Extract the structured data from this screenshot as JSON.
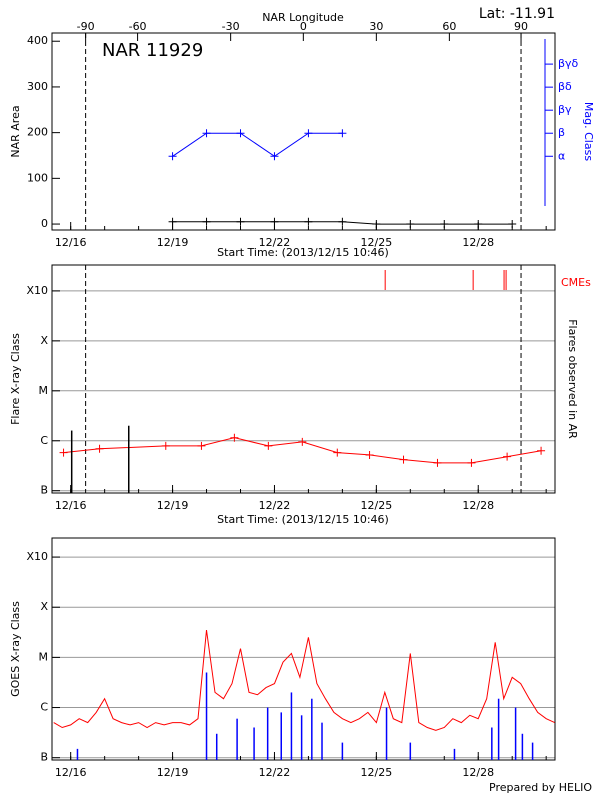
{
  "chart_data": [
    {
      "type": "line",
      "annotation": "NAR 11929",
      "corner_text": "Lat: -11.91",
      "top_xlabel": "NAR Longitude",
      "xlabel": "Start Time: (2013/12/15 10:46)",
      "ylabel": "NAR Area",
      "y2label": "Mag. Class",
      "y2color": "#0000ff",
      "xlim": [
        0.45,
        15.26
      ],
      "xticks": [
        {
          "value": 1,
          "label": "12/16"
        },
        {
          "value": 4,
          "label": "12/19"
        },
        {
          "value": 7,
          "label": "12/22"
        },
        {
          "value": 10,
          "label": "12/25"
        },
        {
          "value": 13,
          "label": "12/28"
        }
      ],
      "top_xticks": [
        {
          "value": 1.44,
          "label": "-90"
        },
        {
          "value": 2.97,
          "label": "-60"
        },
        {
          "value": 5.71,
          "label": "-30"
        },
        {
          "value": 7.85,
          "label": "0"
        },
        {
          "value": 10.0,
          "label": "30"
        },
        {
          "value": 12.15,
          "label": "60"
        },
        {
          "value": 14.26,
          "label": "90"
        }
      ],
      "ylim": [
        -13,
        418
      ],
      "yticks": [
        0,
        100,
        200,
        300,
        400
      ],
      "y2lim": [
        -2.2,
        6.35
      ],
      "y2ticks": [
        {
          "value": 1,
          "label": "α"
        },
        {
          "value": 2,
          "label": "β"
        },
        {
          "value": 3,
          "label": "βγ"
        },
        {
          "value": 4,
          "label": "βδ"
        },
        {
          "value": 5,
          "label": "βγδ"
        }
      ],
      "vlines": [
        1.44,
        14.26
      ],
      "series": [
        {
          "color": "#0000ff",
          "axis": "y2",
          "marker": "+",
          "x": [
            4,
            5,
            6,
            7,
            8,
            9
          ],
          "values": [
            1,
            2,
            2,
            1,
            2,
            2
          ]
        },
        {
          "color": "#000000",
          "marker": "+",
          "x": [
            4,
            5,
            6,
            7,
            8,
            9,
            10,
            11,
            12,
            13,
            14
          ],
          "values": [
            5,
            5,
            5,
            5,
            5,
            5,
            0,
            0,
            0,
            0,
            0
          ]
        }
      ]
    },
    {
      "type": "line",
      "xlabel": "Start Time: (2013/12/15 10:46)",
      "ylabel": "Flare X-ray Class",
      "y2label": "Flares observed in AR",
      "cme_label": "CMEs",
      "cme_color": "#ff0000",
      "log": true,
      "grid": true,
      "xlim": [
        0.45,
        15.26
      ],
      "xticks": [
        {
          "value": 1,
          "label": "12/16"
        },
        {
          "value": 4,
          "label": "12/19"
        },
        {
          "value": 7,
          "label": "12/22"
        },
        {
          "value": 10,
          "label": "12/25"
        },
        {
          "value": 13,
          "label": "12/28"
        }
      ],
      "ylim": [
        9e-08,
        0.0033
      ],
      "yticks": [
        {
          "value": 1e-07,
          "label": "B"
        },
        {
          "value": 1e-06,
          "label": "C"
        },
        {
          "value": 1e-05,
          "label": "M"
        },
        {
          "value": 0.0001,
          "label": "X"
        },
        {
          "value": 0.001,
          "label": "X10"
        }
      ],
      "vlines": [
        1.44,
        14.26
      ],
      "series": [
        {
          "color": "#ff0000",
          "marker": "+",
          "x": [
            0.79,
            1.85,
            3.8,
            4.85,
            5.82,
            6.82,
            7.82,
            8.85,
            9.8,
            10.8,
            11.8,
            12.8,
            13.85,
            14.85
          ],
          "values": [
            5.8e-07,
            6.9e-07,
            7.9e-07,
            7.9e-07,
            1.15e-06,
            7.9e-07,
            9.5e-07,
            5.8e-07,
            5.2e-07,
            4.2e-07,
            3.6e-07,
            3.6e-07,
            4.8e-07,
            6.3e-07
          ]
        },
        {
          "color": "#000000",
          "style": "bar",
          "x": [
            1.03,
            2.71
          ],
          "values": [
            1.6e-06,
            2e-06
          ]
        }
      ],
      "cmes": [
        10.26,
        12.85,
        13.76,
        13.82
      ]
    },
    {
      "type": "line",
      "ylabel": "GOES X-ray Class",
      "footer": "Prepared by HELIO",
      "log": true,
      "grid": true,
      "xlim": [
        0.45,
        15.26
      ],
      "xticks": [
        {
          "value": 1,
          "label": "12/16"
        },
        {
          "value": 4,
          "label": "12/19"
        },
        {
          "value": 7,
          "label": "12/22"
        },
        {
          "value": 10,
          "label": "12/25"
        },
        {
          "value": 13,
          "label": "12/28"
        }
      ],
      "ylim": [
        9e-08,
        0.0024
      ],
      "yticks": [
        {
          "value": 1e-07,
          "label": "B"
        },
        {
          "value": 1e-06,
          "label": "C"
        },
        {
          "value": 1e-05,
          "label": "M"
        },
        {
          "value": 0.0001,
          "label": "X"
        },
        {
          "value": 0.001,
          "label": "X10"
        }
      ],
      "series": [
        {
          "color": "#ff0000",
          "x": [
            0.5,
            0.75,
            1.0,
            1.25,
            1.5,
            1.75,
            2.0,
            2.25,
            2.5,
            2.75,
            3.0,
            3.25,
            3.5,
            3.75,
            4.0,
            4.25,
            4.5,
            4.75,
            5.0,
            5.25,
            5.5,
            5.75,
            6.0,
            6.25,
            6.5,
            6.75,
            7.0,
            7.25,
            7.5,
            7.75,
            8.0,
            8.25,
            8.5,
            8.75,
            9.0,
            9.25,
            9.5,
            9.75,
            10.0,
            10.25,
            10.5,
            10.75,
            11.0,
            11.25,
            11.5,
            11.75,
            12.0,
            12.25,
            12.5,
            12.75,
            13.0,
            13.25,
            13.5,
            13.75,
            14.0,
            14.25,
            14.5,
            14.75,
            15.0,
            15.25
          ],
          "values": [
            5e-07,
            4e-07,
            4.5e-07,
            6e-07,
            5e-07,
            8e-07,
            1.5e-06,
            6e-07,
            5e-07,
            4.5e-07,
            5e-07,
            4e-07,
            5e-07,
            4.5e-07,
            5e-07,
            5e-07,
            4.5e-07,
            6e-07,
            3.5e-05,
            2e-06,
            1.5e-06,
            3e-06,
            1.5e-05,
            2e-06,
            1.8e-06,
            2.5e-06,
            3e-06,
            8e-06,
            1.2e-05,
            4e-06,
            2.5e-05,
            3e-06,
            1.5e-06,
            8e-07,
            6e-07,
            5e-07,
            6e-07,
            8e-07,
            5e-07,
            2e-06,
            6e-07,
            5e-07,
            1.2e-05,
            5e-07,
            4e-07,
            3.5e-07,
            4e-07,
            6e-07,
            5e-07,
            7e-07,
            6e-07,
            1.5e-06,
            2e-05,
            1.5e-06,
            4e-06,
            3e-06,
            1.5e-06,
            8e-07,
            6e-07,
            5e-07
          ]
        },
        {
          "color": "#0000ff",
          "style": "bar",
          "x": [
            1.2,
            5.0,
            5.3,
            5.9,
            6.4,
            6.8,
            7.2,
            7.5,
            7.8,
            8.1,
            8.4,
            9.0,
            10.3,
            11.0,
            12.3,
            13.4,
            13.6,
            14.1,
            14.3,
            14.6
          ],
          "values": [
            1.5e-07,
            5e-06,
            3e-07,
            6e-07,
            4e-07,
            1e-06,
            8e-07,
            2e-06,
            7e-07,
            1.5e-06,
            5e-07,
            2e-07,
            1e-06,
            2e-07,
            1.5e-07,
            4e-07,
            1.5e-06,
            1e-06,
            3e-07,
            2e-07
          ]
        }
      ]
    }
  ]
}
